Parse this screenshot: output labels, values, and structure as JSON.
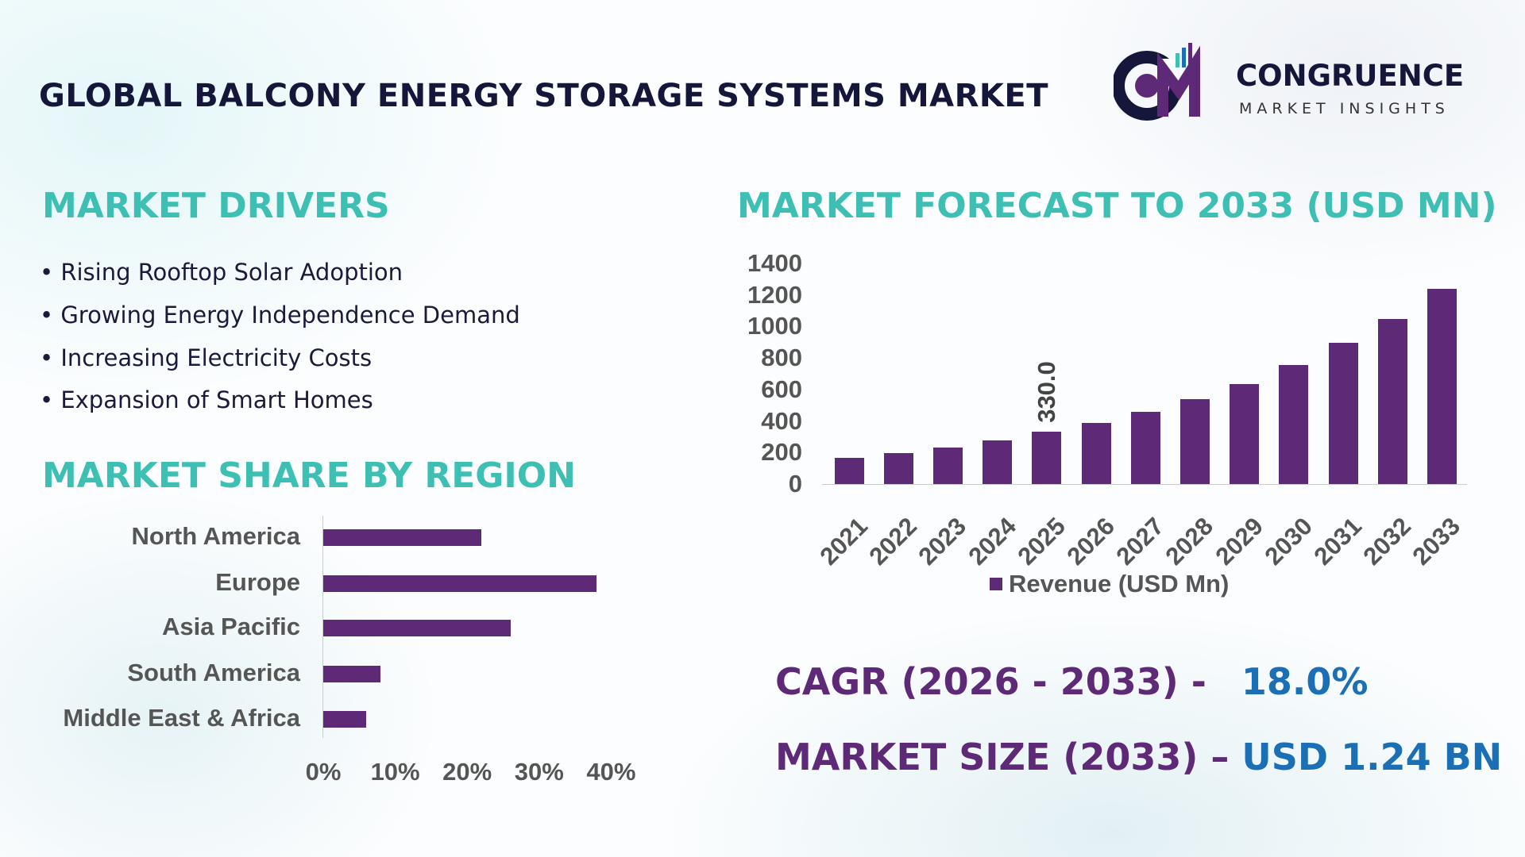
{
  "header": {
    "title": "GLOBAL BALCONY ENERGY STORAGE SYSTEMS MARKET",
    "logo": {
      "mark": "CM",
      "name": "CONGRUENCE",
      "tagline": "MARKET INSIGHTS"
    }
  },
  "drivers": {
    "heading": "MARKET DRIVERS",
    "items": [
      "• Rising Rooftop Solar Adoption",
      "• Growing Energy Independence Demand",
      "• Increasing Electricity Costs",
      "• Expansion of Smart Homes"
    ]
  },
  "colors": {
    "teal": "#3dbfb4",
    "purple": "#5e2a78",
    "blue": "#1a6fb5",
    "dark": "#14163a"
  },
  "chart_data": [
    {
      "type": "bar",
      "orientation": "horizontal",
      "title": "MARKET SHARE BY REGION",
      "categories": [
        "North America",
        "Europe",
        "Asia Pacific",
        "South America",
        "Middle East & Africa"
      ],
      "values": [
        22,
        38,
        26,
        8,
        6
      ],
      "unit": "%",
      "xlim": [
        0,
        40
      ],
      "xticks": [
        "0%",
        "10%",
        "20%",
        "30%",
        "40%"
      ],
      "grid": false
    },
    {
      "type": "bar",
      "title": "MARKET FORECAST TO 2033 (USD MN)",
      "categories": [
        "2021",
        "2022",
        "2023",
        "2024",
        "2025",
        "2026",
        "2027",
        "2028",
        "2029",
        "2030",
        "2031",
        "2032",
        "2033"
      ],
      "series": [
        {
          "name": "Revenue (USD Mn)",
          "values": [
            167,
            197,
            234,
            278,
            330,
            389,
            456,
            537,
            635,
            753,
            894,
            1049,
            1240
          ]
        }
      ],
      "ylim": [
        0,
        1400
      ],
      "yticks": [
        "0",
        "200",
        "400",
        "600",
        "800",
        "1000",
        "1200",
        "1400"
      ],
      "data_labels": [
        {
          "category": "2025",
          "text": "330.0"
        }
      ],
      "legend": "bottom",
      "grid": false
    }
  ],
  "summary": {
    "cagr_label": "CAGR (2026 - 2033) -",
    "cagr_value": "18.0%",
    "size_label": "MARKET SIZE (2033) –",
    "size_value": "USD 1.24 BN"
  }
}
